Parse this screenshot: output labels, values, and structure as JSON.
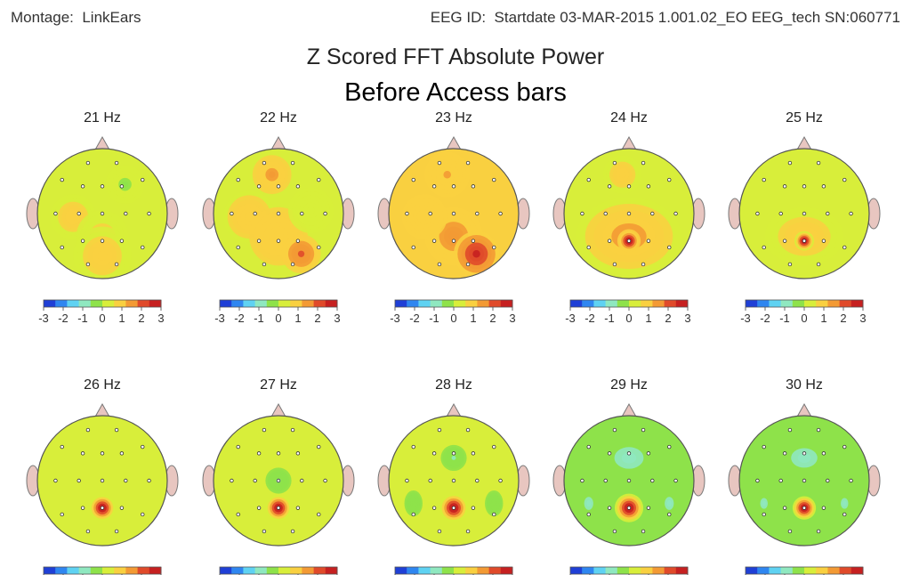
{
  "header": {
    "montage_label": "Montage:",
    "montage_value": "LinkEars",
    "eeg_id_label": "EEG ID:",
    "eeg_id_value": "Startdate 03-MAR-2015 1.001.02_EO EEG_tech SN:060771"
  },
  "chart_data": {
    "type": "heatmap",
    "title": "Z Scored FFT Absolute Power",
    "subtitle": "Before Access bars",
    "colorbar": {
      "ticks": [
        "-3",
        "-2",
        "-1",
        "0",
        "1",
        "2",
        "3"
      ],
      "range": [
        -3,
        3
      ],
      "colors": [
        "#1f3fd6",
        "#2f86f0",
        "#5fd2f2",
        "#8fe8c0",
        "#8ee24a",
        "#d8ee3a",
        "#f9d040",
        "#f39a34",
        "#e04a2a",
        "#c62020"
      ]
    },
    "background_z": 0,
    "maps": [
      {
        "label": "21 Hz",
        "background_z": 0.3,
        "blobs": [
          {
            "area": "left-central",
            "z": 0.9,
            "extent": 0.35
          },
          {
            "area": "parietal",
            "z": 0.8,
            "extent": 0.4
          },
          {
            "area": "occipital",
            "z": 0.9,
            "extent": 0.45
          },
          {
            "area": "right-frontal",
            "z": -0.1,
            "extent": 0.3
          }
        ]
      },
      {
        "label": "22 Hz",
        "background_z": 0.5,
        "blobs": [
          {
            "area": "frontal",
            "z": 1.4,
            "extent": 0.3
          },
          {
            "area": "left-central",
            "z": 1.0,
            "extent": 0.4
          },
          {
            "area": "parietal",
            "z": 1.1,
            "extent": 0.45
          },
          {
            "area": "right-occipital",
            "z": 2.0,
            "extent": 0.3
          },
          {
            "area": "right-central",
            "z": 0.0,
            "extent": 0.35
          }
        ]
      },
      {
        "label": "23 Hz",
        "background_z": 0.6,
        "blobs": [
          {
            "area": "frontal",
            "z": 1.2,
            "extent": 0.35
          },
          {
            "area": "parietal",
            "z": 1.6,
            "extent": 0.45
          },
          {
            "area": "right-occipital",
            "z": 2.6,
            "extent": 0.35
          },
          {
            "area": "left-central",
            "z": 1.1,
            "extent": 0.35
          }
        ]
      },
      {
        "label": "24 Hz",
        "background_z": 0.2,
        "blobs": [
          {
            "area": "frontal",
            "z": 1.0,
            "extent": 0.3
          },
          {
            "area": "parietal-wide",
            "z": 1.5,
            "extent": 0.6
          },
          {
            "area": "pz",
            "z": 3.0,
            "extent": 0.18
          }
        ]
      },
      {
        "label": "25 Hz",
        "background_z": 0.1,
        "blobs": [
          {
            "area": "parietal-wide",
            "z": 1.1,
            "extent": 0.45
          },
          {
            "area": "pz",
            "z": 3.0,
            "extent": 0.15
          }
        ]
      },
      {
        "label": "26 Hz",
        "background_z": 0.0,
        "blobs": [
          {
            "area": "pz",
            "z": 3.0,
            "extent": 0.2
          }
        ]
      },
      {
        "label": "27 Hz",
        "background_z": 0.0,
        "blobs": [
          {
            "area": "pz",
            "z": 3.0,
            "extent": 0.2
          },
          {
            "area": "central",
            "z": -0.6,
            "extent": 0.2
          }
        ]
      },
      {
        "label": "28 Hz",
        "background_z": 0.0,
        "blobs": [
          {
            "area": "pz",
            "z": 3.0,
            "extent": 0.22
          },
          {
            "area": "fz",
            "z": -0.6,
            "extent": 0.2
          },
          {
            "area": "left-temporal",
            "z": -0.5,
            "extent": 0.2
          },
          {
            "area": "right-temporal",
            "z": -0.5,
            "extent": 0.2
          }
        ]
      },
      {
        "label": "29 Hz",
        "background_z": -0.1,
        "blobs": [
          {
            "area": "pz",
            "z": 3.0,
            "extent": 0.22
          },
          {
            "area": "frontal-wide",
            "z": -0.8,
            "extent": 0.5
          },
          {
            "area": "left-temporal",
            "z": -0.8,
            "extent": 0.3
          },
          {
            "area": "right-temporal",
            "z": -0.8,
            "extent": 0.3
          }
        ]
      },
      {
        "label": "30 Hz",
        "background_z": -0.1,
        "blobs": [
          {
            "area": "pz",
            "z": 3.0,
            "extent": 0.18
          },
          {
            "area": "frontal-wide",
            "z": -0.8,
            "extent": 0.45
          },
          {
            "area": "left-temporal",
            "z": -0.7,
            "extent": 0.25
          },
          {
            "area": "right-temporal",
            "z": -0.7,
            "extent": 0.25
          }
        ]
      }
    ]
  }
}
